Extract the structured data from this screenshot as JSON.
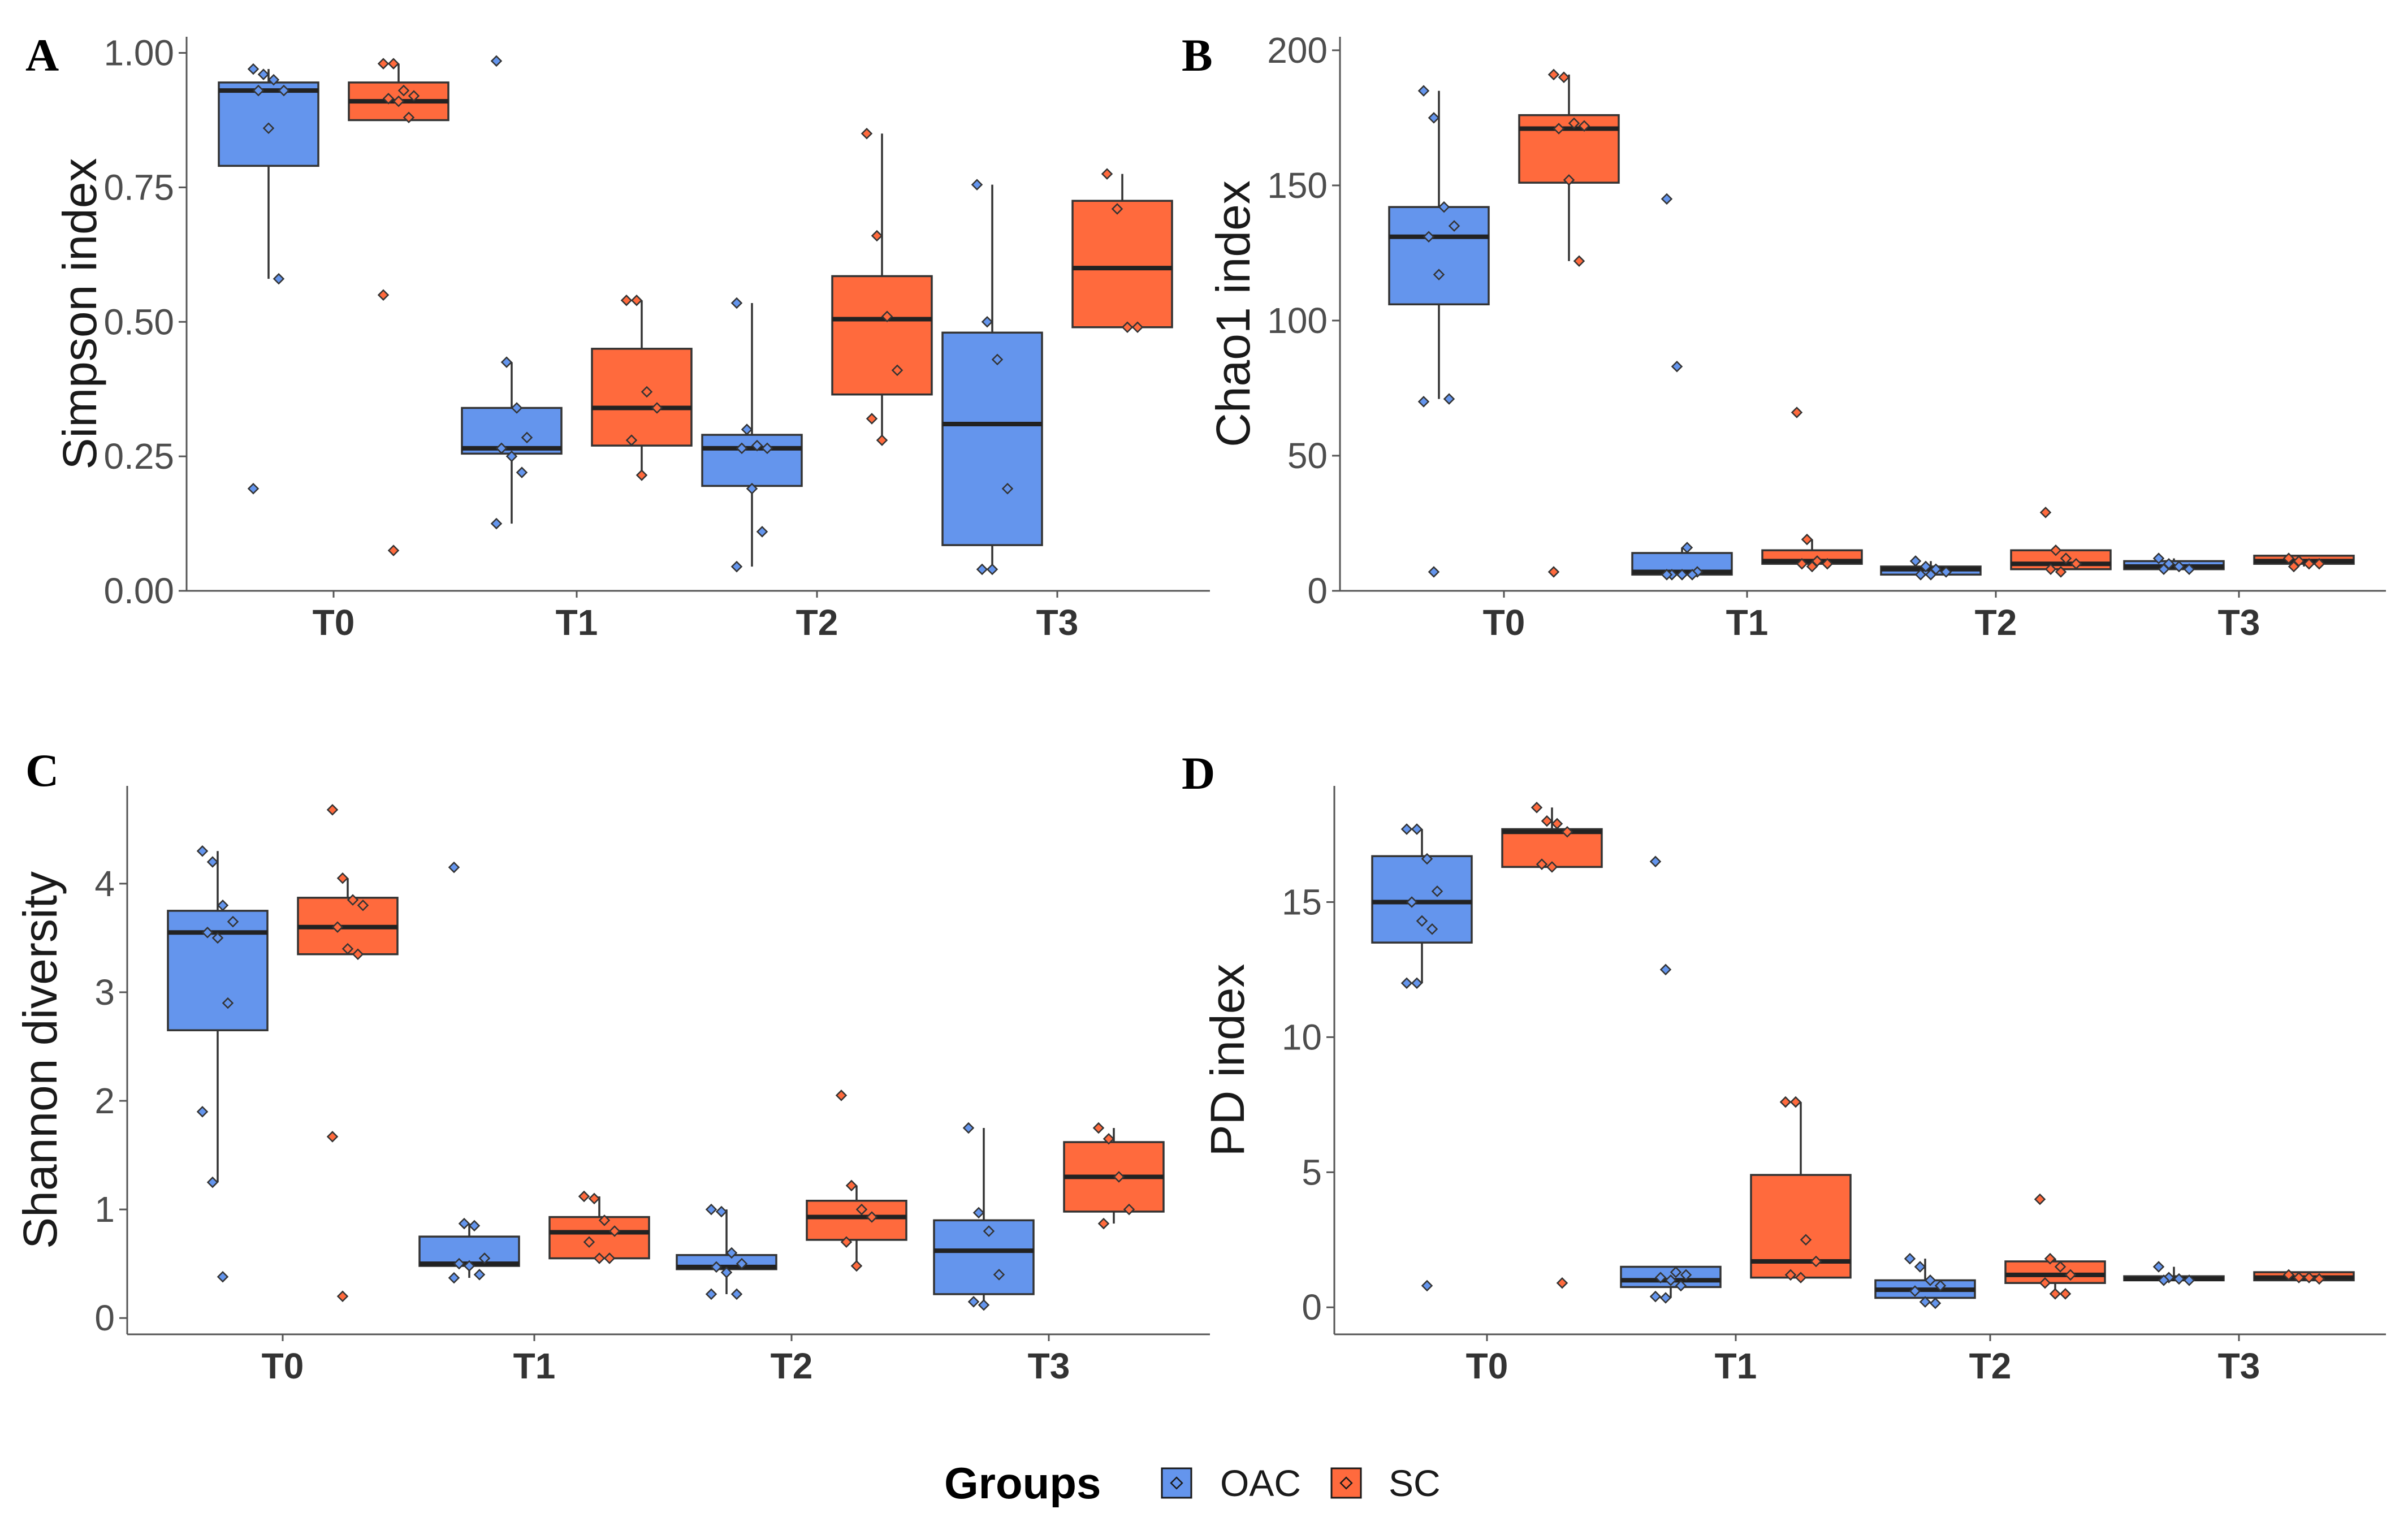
{
  "legend": {
    "title": "Groups",
    "items": [
      {
        "name": "OAC",
        "color": "#6495ed"
      },
      {
        "name": "SC",
        "color": "#ff6a3d"
      }
    ]
  },
  "chart_data": [
    {
      "type": "boxplot",
      "panel": "A",
      "ylabel": "Simpson index",
      "categories": [
        "T0",
        "T1",
        "T2",
        "T3"
      ],
      "ylim": [
        0,
        1.03
      ],
      "yticks": [
        0,
        0.25,
        0.5,
        0.75,
        1
      ],
      "ytick_labels": [
        "0.00",
        "0.25",
        "0.50",
        "0.75",
        "1.00"
      ],
      "series": [
        {
          "name": "OAC",
          "boxes": [
            {
              "q1": 0.79,
              "median": 0.93,
              "q3": 0.945,
              "whisker_low": 0.58,
              "whisker_high": 0.97,
              "points": [
                0.97,
                0.96,
                0.95,
                0.93,
                0.93,
                0.86,
                0.58,
                0.19
              ]
            },
            {
              "q1": 0.255,
              "median": 0.265,
              "q3": 0.34,
              "whisker_low": 0.125,
              "whisker_high": 0.425,
              "points": [
                0.985,
                0.425,
                0.34,
                0.285,
                0.265,
                0.25,
                0.22,
                0.125
              ]
            },
            {
              "q1": 0.195,
              "median": 0.265,
              "q3": 0.29,
              "whisker_low": 0.045,
              "whisker_high": 0.535,
              "points": [
                0.535,
                0.3,
                0.27,
                0.265,
                0.265,
                0.19,
                0.11,
                0.045
              ]
            },
            {
              "q1": 0.085,
              "median": 0.31,
              "q3": 0.48,
              "whisker_low": 0.04,
              "whisker_high": 0.755,
              "points": [
                0.755,
                0.5,
                0.43,
                0.19,
                0.04,
                0.04
              ]
            }
          ]
        },
        {
          "name": "SC",
          "boxes": [
            {
              "q1": 0.875,
              "median": 0.91,
              "q3": 0.945,
              "whisker_low": 0.875,
              "whisker_high": 0.98,
              "points": [
                0.98,
                0.98,
                0.93,
                0.92,
                0.915,
                0.91,
                0.88,
                0.55,
                0.075
              ]
            },
            {
              "q1": 0.27,
              "median": 0.34,
              "q3": 0.45,
              "whisker_low": 0.215,
              "whisker_high": 0.54,
              "points": [
                0.54,
                0.54,
                0.37,
                0.34,
                0.28,
                0.215
              ]
            },
            {
              "q1": 0.365,
              "median": 0.505,
              "q3": 0.585,
              "whisker_low": 0.28,
              "whisker_high": 0.85,
              "points": [
                0.85,
                0.66,
                0.51,
                0.41,
                0.32,
                0.28
              ]
            },
            {
              "q1": 0.49,
              "median": 0.6,
              "q3": 0.725,
              "whisker_low": 0.49,
              "whisker_high": 0.775,
              "points": [
                0.775,
                0.71,
                0.49,
                0.49
              ]
            }
          ]
        }
      ]
    },
    {
      "type": "boxplot",
      "panel": "B",
      "ylabel": "Chao1 index",
      "categories": [
        "T0",
        "T1",
        "T2",
        "T3"
      ],
      "ylim": [
        0,
        205
      ],
      "yticks": [
        0,
        50,
        100,
        150,
        200
      ],
      "ytick_labels": [
        "0",
        "50",
        "100",
        "150",
        "200"
      ],
      "series": [
        {
          "name": "OAC",
          "boxes": [
            {
              "q1": 106,
              "median": 131,
              "q3": 142,
              "whisker_low": 71,
              "whisker_high": 185,
              "points": [
                185,
                175,
                142,
                135,
                131,
                117,
                71,
                70,
                7
              ]
            },
            {
              "q1": 6,
              "median": 7,
              "q3": 14,
              "whisker_low": 6,
              "whisker_high": 16,
              "points": [
                145,
                83,
                16,
                7,
                6,
                6,
                6,
                6
              ]
            },
            {
              "q1": 6,
              "median": 8,
              "q3": 9,
              "whisker_low": 6,
              "whisker_high": 11,
              "points": [
                11,
                9,
                8,
                7,
                6,
                6
              ]
            },
            {
              "q1": 8,
              "median": 9,
              "q3": 11,
              "whisker_low": 8,
              "whisker_high": 12,
              "points": [
                12,
                10,
                9,
                8,
                8
              ]
            }
          ]
        },
        {
          "name": "SC",
          "boxes": [
            {
              "q1": 151,
              "median": 171,
              "q3": 176,
              "whisker_low": 122,
              "whisker_high": 191,
              "points": [
                191,
                190,
                173,
                172,
                171,
                152,
                122,
                7
              ]
            },
            {
              "q1": 10,
              "median": 11,
              "q3": 15,
              "whisker_low": 9,
              "whisker_high": 19,
              "points": [
                66,
                19,
                11,
                10,
                10,
                9
              ]
            },
            {
              "q1": 8,
              "median": 10,
              "q3": 15,
              "whisker_low": 7,
              "whisker_high": 15,
              "points": [
                29,
                15,
                12,
                10,
                8,
                7
              ]
            },
            {
              "q1": 10,
              "median": 11,
              "q3": 13,
              "whisker_low": 9,
              "whisker_high": 13,
              "points": [
                12,
                11,
                10,
                10,
                9
              ]
            }
          ]
        }
      ]
    },
    {
      "type": "boxplot",
      "panel": "C",
      "ylabel": "Shannon diversity",
      "categories": [
        "T0",
        "T1",
        "T2",
        "T3"
      ],
      "ylim": [
        -0.15,
        4.9
      ],
      "yticks": [
        0,
        1,
        2,
        3,
        4
      ],
      "ytick_labels": [
        "0",
        "1",
        "2",
        "3",
        "4"
      ],
      "series": [
        {
          "name": "OAC",
          "boxes": [
            {
              "q1": 2.65,
              "median": 3.55,
              "q3": 3.75,
              "whisker_low": 1.25,
              "whisker_high": 4.3,
              "points": [
                4.3,
                4.2,
                3.8,
                3.65,
                3.55,
                3.5,
                2.9,
                1.9,
                1.25,
                0.38
              ]
            },
            {
              "q1": 0.48,
              "median": 0.5,
              "q3": 0.75,
              "whisker_low": 0.37,
              "whisker_high": 0.87,
              "points": [
                4.15,
                0.87,
                0.85,
                0.55,
                0.5,
                0.48,
                0.4,
                0.37
              ]
            },
            {
              "q1": 0.45,
              "median": 0.47,
              "q3": 0.58,
              "whisker_low": 0.22,
              "whisker_high": 1.0,
              "points": [
                1.0,
                0.98,
                0.6,
                0.5,
                0.47,
                0.42,
                0.22,
                0.22
              ]
            },
            {
              "q1": 0.22,
              "median": 0.62,
              "q3": 0.9,
              "whisker_low": 0.12,
              "whisker_high": 1.75,
              "points": [
                1.75,
                0.97,
                0.8,
                0.4,
                0.15,
                0.12
              ]
            }
          ]
        },
        {
          "name": "SC",
          "boxes": [
            {
              "q1": 3.35,
              "median": 3.6,
              "q3": 3.87,
              "whisker_low": 3.35,
              "whisker_high": 4.05,
              "points": [
                4.68,
                4.05,
                3.85,
                3.8,
                3.6,
                3.4,
                3.35,
                1.67,
                0.2
              ]
            },
            {
              "q1": 0.55,
              "median": 0.79,
              "q3": 0.93,
              "whisker_low": 0.55,
              "whisker_high": 1.12,
              "points": [
                1.12,
                1.1,
                0.9,
                0.8,
                0.7,
                0.55,
                0.55
              ]
            },
            {
              "q1": 0.72,
              "median": 0.93,
              "q3": 1.08,
              "whisker_low": 0.48,
              "whisker_high": 1.22,
              "points": [
                2.05,
                1.22,
                1.0,
                0.93,
                0.7,
                0.48
              ]
            },
            {
              "q1": 0.98,
              "median": 1.3,
              "q3": 1.62,
              "whisker_low": 0.87,
              "whisker_high": 1.75,
              "points": [
                1.75,
                1.65,
                1.3,
                1.0,
                0.87
              ]
            }
          ]
        }
      ]
    },
    {
      "type": "boxplot",
      "panel": "D",
      "ylabel": "PD index",
      "categories": [
        "T0",
        "T1",
        "T2",
        "T3"
      ],
      "ylim": [
        -1,
        19.3
      ],
      "yticks": [
        0,
        5,
        10,
        15
      ],
      "ytick_labels": [
        "0",
        "5",
        "10",
        "15"
      ],
      "series": [
        {
          "name": "OAC",
          "boxes": [
            {
              "q1": 13.5,
              "median": 15.0,
              "q3": 16.7,
              "whisker_low": 12.0,
              "whisker_high": 17.7,
              "points": [
                17.7,
                17.7,
                16.6,
                15.4,
                15.0,
                14.3,
                14.0,
                12.0,
                12.0,
                0.8
              ]
            },
            {
              "q1": 0.75,
              "median": 1.0,
              "q3": 1.5,
              "whisker_low": 0.35,
              "whisker_high": 1.5,
              "points": [
                16.5,
                12.5,
                1.3,
                1.2,
                1.1,
                1.0,
                0.8,
                0.4,
                0.35
              ]
            },
            {
              "q1": 0.35,
              "median": 0.65,
              "q3": 1.0,
              "whisker_low": 0.15,
              "whisker_high": 1.8,
              "points": [
                1.8,
                1.5,
                1.0,
                0.8,
                0.6,
                0.2,
                0.15
              ]
            },
            {
              "q1": 1.0,
              "median": 1.05,
              "q3": 1.15,
              "whisker_low": 1.0,
              "whisker_high": 1.5,
              "points": [
                1.5,
                1.1,
                1.05,
                1.0,
                1.0
              ]
            }
          ]
        },
        {
          "name": "SC",
          "boxes": [
            {
              "q1": 16.3,
              "median": 17.6,
              "q3": 17.7,
              "whisker_low": 16.3,
              "whisker_high": 18.5,
              "points": [
                18.5,
                18.0,
                17.9,
                17.6,
                16.4,
                16.3,
                0.9
              ]
            },
            {
              "q1": 1.1,
              "median": 1.7,
              "q3": 4.9,
              "whisker_low": 1.1,
              "whisker_high": 7.6,
              "points": [
                7.6,
                7.6,
                2.5,
                1.7,
                1.2,
                1.1
              ]
            },
            {
              "q1": 0.9,
              "median": 1.2,
              "q3": 1.7,
              "whisker_low": 0.5,
              "whisker_high": 1.8,
              "points": [
                4.0,
                1.8,
                1.5,
                1.2,
                0.9,
                0.5,
                0.5
              ]
            },
            {
              "q1": 1.0,
              "median": 1.1,
              "q3": 1.3,
              "whisker_low": 1.0,
              "whisker_high": 1.3,
              "points": [
                1.2,
                1.1,
                1.1,
                1.05
              ]
            }
          ]
        }
      ]
    }
  ]
}
